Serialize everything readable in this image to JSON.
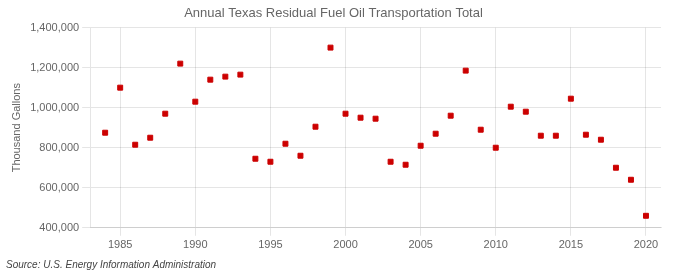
{
  "chart_data": {
    "type": "scatter",
    "title": "Annual Texas Residual Fuel Oil Transportation Total",
    "ylabel": "Thousand Gallons",
    "annotation": "Source: U.S. Energy Information Administration",
    "color": "#cc0000",
    "marker": "square",
    "grid": true,
    "x": [
      1984,
      1985,
      1986,
      1987,
      1988,
      1989,
      1990,
      1991,
      1992,
      1993,
      1994,
      1995,
      1996,
      1997,
      1998,
      1999,
      2000,
      2001,
      2002,
      2003,
      2004,
      2005,
      2006,
      2007,
      2008,
      2009,
      2010,
      2011,
      2012,
      2013,
      2014,
      2015,
      2016,
      2017,
      2018,
      2019,
      2020
    ],
    "values": [
      875000,
      1100000,
      815000,
      850000,
      970000,
      1220000,
      1030000,
      1140000,
      1155000,
      1165000,
      745000,
      730000,
      820000,
      760000,
      905000,
      1300000,
      970000,
      950000,
      945000,
      730000,
      715000,
      810000,
      870000,
      960000,
      1185000,
      890000,
      800000,
      1005000,
      980000,
      860000,
      860000,
      1045000,
      865000,
      840000,
      700000,
      640000,
      460000
    ],
    "xlim": [
      1983,
      2021
    ],
    "xticks": [
      1985,
      1990,
      1995,
      2000,
      2005,
      2010,
      2015,
      2020
    ],
    "ylim": [
      400000,
      1400000
    ],
    "yticks": [
      {
        "value": 400000,
        "label": "400,000"
      },
      {
        "value": 600000,
        "label": "600,000"
      },
      {
        "value": 800000,
        "label": "800,000"
      },
      {
        "value": 1000000,
        "label": "1,000,000"
      },
      {
        "value": 1200000,
        "label": "1,200,000"
      },
      {
        "value": 1400000,
        "label": "1,400,000"
      }
    ]
  }
}
